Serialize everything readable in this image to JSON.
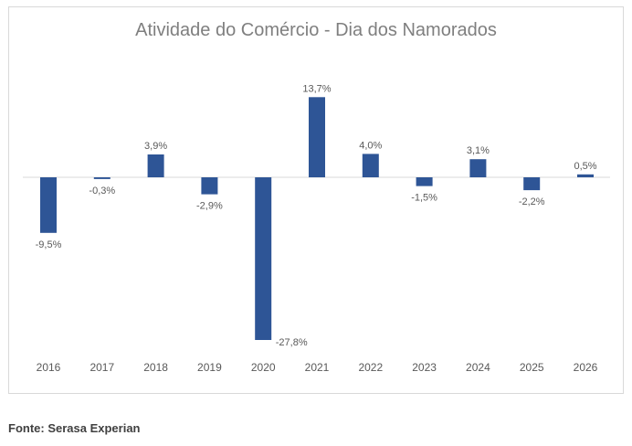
{
  "chart_data": {
    "type": "bar",
    "title": "Atividade do Comércio - Dia dos Namorados",
    "categories": [
      "2016",
      "2017",
      "2018",
      "2019",
      "2020",
      "2021",
      "2022",
      "2023",
      "2024",
      "2025",
      "2026"
    ],
    "values": [
      -9.5,
      -0.3,
      3.9,
      -2.9,
      -27.8,
      13.7,
      4.0,
      -1.5,
      3.1,
      -2.2,
      0.5
    ],
    "data_labels": [
      "-9,5%",
      "-0,3%",
      "3,9%",
      "-2,9%",
      "-27,8%",
      "13,7%",
      "4,0%",
      "-1,5%",
      "3,1%",
      "-2,2%",
      "0,5%"
    ],
    "xlabel": "",
    "ylabel": "",
    "ylim": [
      -28,
      14
    ],
    "grid": false,
    "legend": "none",
    "bar_color": "#2e5596"
  },
  "source": "Fonte: Serasa Experian"
}
